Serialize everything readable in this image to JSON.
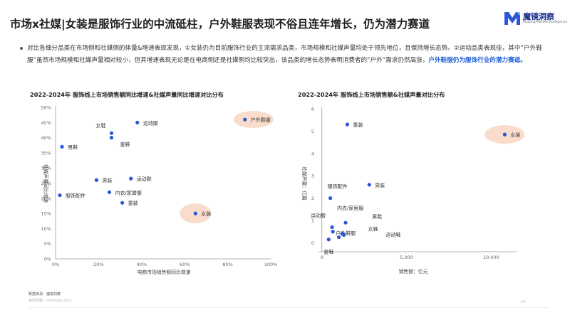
{
  "header": {
    "title": "市场x社媒|女装是服饰行业的中流砥柱，户外鞋服表现不俗且连年增长，仍为潜力赛道",
    "logo_name": "魔镜洞察",
    "logo_sub": "Moojing Market Intelligence",
    "brand_color": "#2a56d8"
  },
  "summary": {
    "text_1": "对比各细分品类在市场侧和社媒侧的体量&增速表现发现，①女装仍为目前服饰行业的主流需求品类，市场规模和社媒声量均处于领先地位，且保持增长态势。②运动品类表现佳，其中“户外鞋服”虽然市场规模和社媒声量相对较小，但其增速表现无论是在电商侧还是社媒侧均比较突出，该品类的增长态势表明消费者的“户外”需求仍然高涨，",
    "highlight": "户外鞋服仍为服饰行业的潜力赛道。",
    "highlight_color": "#1f5fd6"
  },
  "colors": {
    "point": "#2a56d8",
    "highlight_bubble": "#f9dccb",
    "axis": "#999999",
    "grid": "#d8d8d8"
  },
  "chart_data": [
    {
      "type": "scatter",
      "title": "2022-2024年 服饰线上市场销售额同比增速&社媒声量同比增速对比分布",
      "xlabel": "电商市场销售额同比增速",
      "ylabel": "社媒声量同比增速",
      "xlim": [
        0,
        100
      ],
      "ylim": [
        0,
        50
      ],
      "x_ticks": [
        "0%",
        "20%",
        "40%",
        "60%",
        "80%",
        "100%"
      ],
      "y_ticks": [
        "0%",
        "5%",
        "10%",
        "15%",
        "20%",
        "25%",
        "30%",
        "35%",
        "40%",
        "45%",
        "50%"
      ],
      "grid": false,
      "points": [
        {
          "name": "户外鞋服",
          "x": 88,
          "y": 46,
          "highlight": true
        },
        {
          "name": "运动服",
          "x": 38,
          "y": 45
        },
        {
          "name": "女鞋",
          "x": 26,
          "y": 41.5
        },
        {
          "name": "童鞋",
          "x": 26,
          "y": 40
        },
        {
          "name": "男鞋",
          "x": 3,
          "y": 37
        },
        {
          "name": "男装",
          "x": 19,
          "y": 26
        },
        {
          "name": "运动鞋",
          "x": 35,
          "y": 26.5
        },
        {
          "name": "内衣/家居服",
          "x": 25,
          "y": 22
        },
        {
          "name": "服饰配件",
          "x": 2,
          "y": 21
        },
        {
          "name": "童装",
          "x": 31,
          "y": 18.5
        },
        {
          "name": "女装",
          "x": 65,
          "y": 15,
          "highlight": true
        }
      ]
    },
    {
      "type": "scatter",
      "title": "2022-2024年 服饰线上市场销售额&社媒声量对比分布",
      "xlabel": "销售额：亿元",
      "ylabel": "社媒声量：亿篇",
      "xlim": [
        -200,
        11500
      ],
      "ylim": [
        -0.4,
        6
      ],
      "x_ticks": [
        "0",
        "5,000",
        "10,000"
      ],
      "y_ticks": [
        "0",
        "1",
        "2",
        "3",
        "4",
        "5",
        "6"
      ],
      "grid": false,
      "points": [
        {
          "name": "女装",
          "x": 10800,
          "y": 4.85,
          "highlight": true
        },
        {
          "name": "童装",
          "x": 1500,
          "y": 5.3
        },
        {
          "name": "男装",
          "x": 2800,
          "y": 2.6
        },
        {
          "name": "服饰配件",
          "x": 500,
          "y": 2.0
        },
        {
          "name": "内衣/家居服",
          "x": 1400,
          "y": 0.9
        },
        {
          "name": "运动服",
          "x": 600,
          "y": 0.7
        },
        {
          "name": "户外鞋服",
          "x": 650,
          "y": 0.5
        },
        {
          "name": "男鞋",
          "x": 1200,
          "y": 0.4
        },
        {
          "name": "女鞋",
          "x": 1300,
          "y": 0.35
        },
        {
          "name": "运动鞋",
          "x": 1000,
          "y": 0.25
        },
        {
          "name": "童鞋",
          "x": 400,
          "y": 0.15
        }
      ]
    }
  ],
  "footer": {
    "source": "数据来源：魔镜洞察",
    "source_hl": "魔镜洞察 · mktindex.com",
    "page": "10"
  }
}
